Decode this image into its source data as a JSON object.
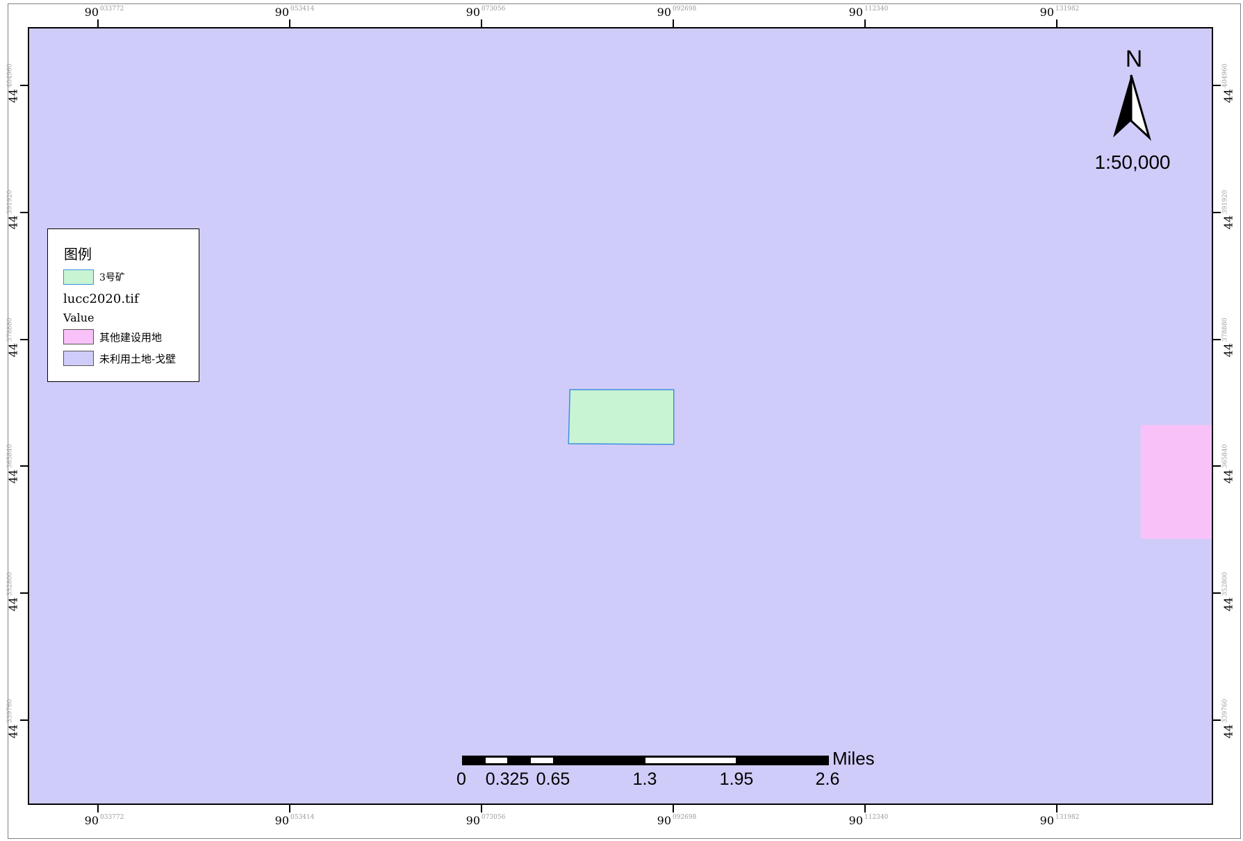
{
  "map": {
    "background_color": "#d0ccf9",
    "mine_fill": "#c8f4d4",
    "mine_stroke": "#3a8fe0",
    "other_construction_fill": "#f8c2f8"
  },
  "grid_labels": {
    "x": [
      {
        "major": "90",
        "minor": "033772"
      },
      {
        "major": "90",
        "minor": "053414"
      },
      {
        "major": "90",
        "minor": "073056"
      },
      {
        "major": "90",
        "minor": "092698"
      },
      {
        "major": "90",
        "minor": "112340"
      },
      {
        "major": "90",
        "minor": "131982"
      }
    ],
    "y": [
      {
        "major": "44",
        "minor": "404960"
      },
      {
        "major": "44",
        "minor": "391920"
      },
      {
        "major": "44",
        "minor": "378880"
      },
      {
        "major": "44",
        "minor": "365840"
      },
      {
        "major": "44",
        "minor": "352800"
      },
      {
        "major": "44",
        "minor": "339760"
      }
    ]
  },
  "legend": {
    "title": "图例",
    "mine_label": "3号矿",
    "raster_name": "lucc2020.tif",
    "field_name": "Value",
    "class_1": "其他建设用地",
    "class_2": "未利用土地-戈壁"
  },
  "north_arrow": {
    "letter": "N",
    "icon": "north-arrow-icon"
  },
  "scale_text": "1:50,000",
  "scalebar": {
    "labels": [
      "0",
      "0.325",
      "0.65",
      "1.3",
      "1.95",
      "2.6"
    ],
    "unit": "Miles"
  }
}
